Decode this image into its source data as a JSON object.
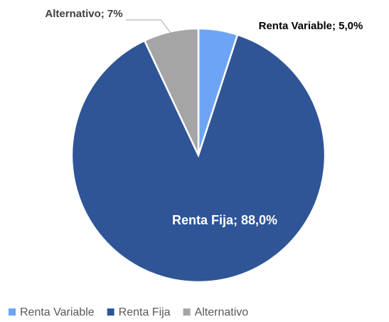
{
  "chart_data": {
    "type": "pie",
    "categories": [
      "Renta Variable",
      "Renta Fija",
      "Alternativo"
    ],
    "values": [
      5.0,
      88.0,
      7
    ],
    "value_labels": [
      "Renta Variable; 5,0%",
      "Renta Fija; 88,0%",
      "Alternativo; 7%"
    ],
    "colors": [
      "#6ea4f5",
      "#2f5597",
      "#a5a5a5"
    ],
    "legend": "bottom"
  }
}
